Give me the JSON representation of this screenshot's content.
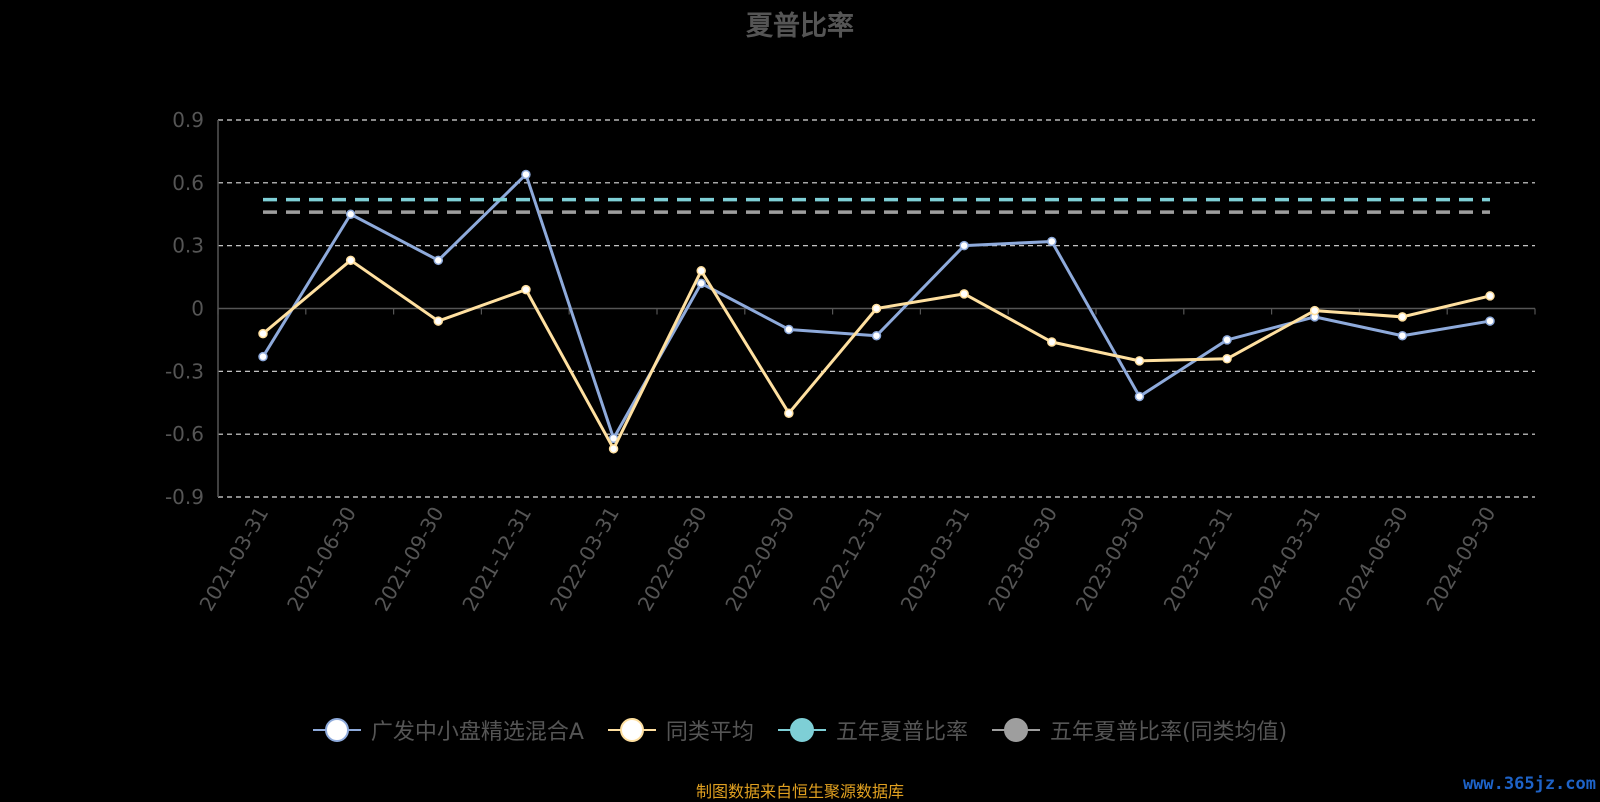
{
  "chart_data": {
    "type": "line",
    "title": "夏普比率",
    "categories": [
      "2021-03-31",
      "2021-06-30",
      "2021-09-30",
      "2021-12-31",
      "2022-03-31",
      "2022-06-30",
      "2022-09-30",
      "2022-12-31",
      "2023-03-31",
      "2023-06-30",
      "2023-09-30",
      "2023-12-31",
      "2024-03-31",
      "2024-06-30",
      "2024-09-30"
    ],
    "ylim": [
      -0.9,
      0.9
    ],
    "yticks": [
      "0.9",
      "0.6",
      "0.3",
      "0",
      "-0.3",
      "-0.6",
      "-0.9"
    ],
    "yticks_values": [
      0.9,
      0.6,
      0.3,
      0,
      -0.3,
      -0.6,
      -0.9
    ],
    "grid": true,
    "legend_position": "bottom",
    "series": [
      {
        "name": "广发中小盘精选混合A",
        "color": "#8eaadb",
        "marker_fill": "#ffffff",
        "values": [
          -0.23,
          0.45,
          0.23,
          0.64,
          -0.62,
          0.12,
          -0.1,
          -0.13,
          0.3,
          0.32,
          -0.42,
          -0.15,
          -0.04,
          -0.13,
          -0.06
        ]
      },
      {
        "name": "同类平均",
        "color": "#ffe0a0",
        "marker_fill": "#ffffff",
        "values": [
          -0.12,
          0.23,
          -0.06,
          0.09,
          -0.67,
          0.18,
          -0.5,
          0.0,
          0.07,
          -0.16,
          -0.25,
          -0.24,
          -0.01,
          -0.04,
          0.06
        ]
      },
      {
        "name": "五年夏普比率",
        "color": "#7ecfd6",
        "marker_fill": "#7ecfd6",
        "dashed": true,
        "values": [
          0.52,
          0.52,
          0.52,
          0.52,
          0.52,
          0.52,
          0.52,
          0.52,
          0.52,
          0.52,
          0.52,
          0.52,
          0.52,
          0.52,
          0.52
        ]
      },
      {
        "name": "五年夏普比率(同类均值)",
        "color": "#9e9e9e",
        "marker_fill": "#9e9e9e",
        "dashed": true,
        "values": [
          0.46,
          0.46,
          0.46,
          0.46,
          0.46,
          0.46,
          0.46,
          0.46,
          0.46,
          0.46,
          0.46,
          0.46,
          0.46,
          0.46,
          0.46
        ]
      }
    ]
  },
  "footer": {
    "source": "制图数据来自恒生聚源数据库",
    "watermark": "www.365jz.com"
  }
}
